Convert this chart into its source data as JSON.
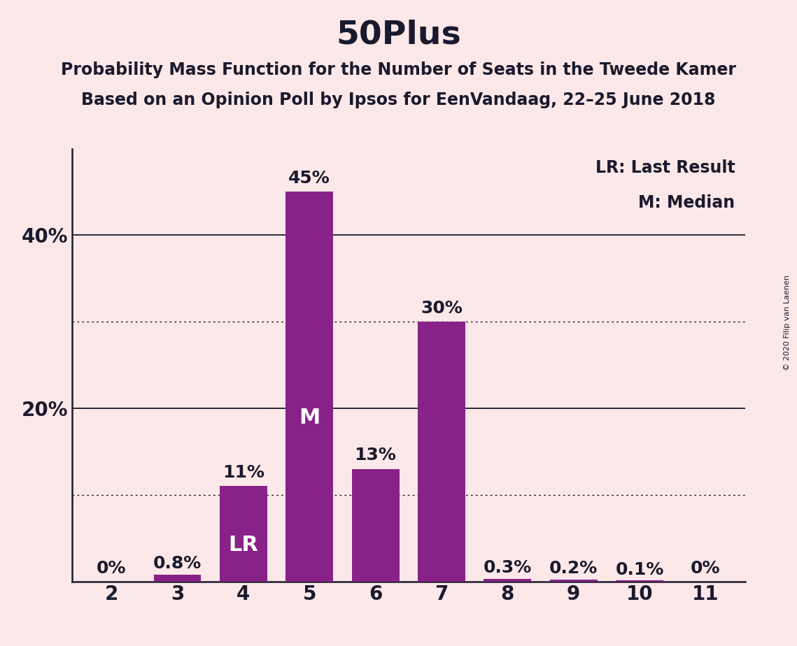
{
  "title": "50Plus",
  "subtitle1": "Probability Mass Function for the Number of Seats in the Tweede Kamer",
  "subtitle2": "Based on an Opinion Poll by Ipsos for EenVandaag, 22–25 June 2018",
  "copyright": "© 2020 Filip van Laenen",
  "categories": [
    2,
    3,
    4,
    5,
    6,
    7,
    8,
    9,
    10,
    11
  ],
  "values": [
    0.0,
    0.8,
    11.0,
    45.0,
    13.0,
    30.0,
    0.3,
    0.2,
    0.1,
    0.0
  ],
  "bar_color": "#882288",
  "background_color": "#fce8e8",
  "bar_labels": [
    "0%",
    "0.8%",
    "11%",
    "45%",
    "13%",
    "30%",
    "0.3%",
    "0.2%",
    "0.1%",
    "0%"
  ],
  "yticks": [
    20,
    40
  ],
  "ytick_labels": [
    "20%",
    "40%"
  ],
  "ylim": [
    0,
    50
  ],
  "dotted_lines": [
    10,
    30
  ],
  "solid_lines": [
    20,
    40
  ],
  "lr_bar_index": 2,
  "median_bar_index": 3,
  "legend_lr": "LR: Last Result",
  "legend_m": "M: Median",
  "title_fontsize": 34,
  "subtitle_fontsize": 17,
  "label_fontsize": 17,
  "tick_fontsize": 20,
  "bar_label_fontsize": 18,
  "inner_label_fontsize": 22,
  "text_color": "#1a1a2e"
}
